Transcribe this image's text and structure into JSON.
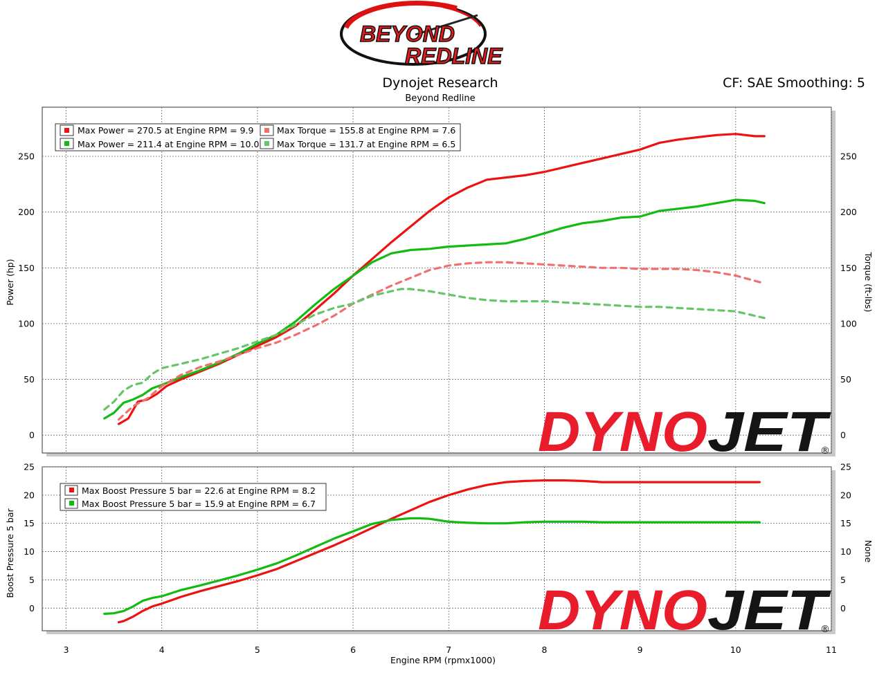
{
  "brand": {
    "logo_line1": "BEYOND",
    "logo_line2": "REDLINE"
  },
  "header": {
    "title": "Dynojet Research",
    "subtitle": "Beyond Redline",
    "cf_info": "CF: SAE Smoothing: 5"
  },
  "watermark": {
    "text_red": "DYNO",
    "text_black": "JET",
    "registered": "®"
  },
  "colors": {
    "run1": "#ee1111",
    "run1_light": "#f07070",
    "run2": "#11bb11",
    "run2_light": "#66c566",
    "grid": "#666666"
  },
  "chart_data": [
    {
      "type": "line",
      "xlabel": "Engine RPM (rpmx1000)",
      "ylabel": "Power (hp)",
      "y2label": "Torque (ft-lbs)",
      "xlim": [
        2.75,
        11
      ],
      "ylim": [
        -16,
        294
      ],
      "xticks": [
        3,
        4,
        5,
        6,
        7,
        8,
        9,
        10,
        11
      ],
      "yticks": [
        0,
        50,
        100,
        150,
        200,
        250
      ],
      "legend": [
        "Max Power = 270.5 at Engine RPM = 9.9",
        "Max Power = 211.4 at Engine RPM = 10.0",
        "Max Torque = 155.8 at Engine RPM = 7.6",
        "Max Torque = 131.7 at Engine RPM = 6.5"
      ],
      "legend_position": "top-left",
      "series": [
        {
          "kind": "power",
          "run": 1,
          "dashed": false,
          "x": [
            3.55,
            3.65,
            3.75,
            3.85,
            3.95,
            4.05,
            4.2,
            4.4,
            4.6,
            4.8,
            5.0,
            5.2,
            5.4,
            5.6,
            5.8,
            6.0,
            6.2,
            6.4,
            6.6,
            6.8,
            7.0,
            7.2,
            7.4,
            7.6,
            7.8,
            8.0,
            8.2,
            8.4,
            8.6,
            8.8,
            9.0,
            9.2,
            9.4,
            9.6,
            9.8,
            10.0,
            10.2,
            10.3
          ],
          "y": [
            10,
            15,
            30,
            32,
            37,
            44,
            50,
            57,
            64,
            72,
            80,
            88,
            98,
            112,
            127,
            143,
            158,
            173,
            187,
            201,
            213,
            222,
            229,
            231,
            233,
            236,
            240,
            244,
            248,
            252,
            256,
            262,
            265,
            267,
            269,
            270,
            268,
            268
          ]
        },
        {
          "kind": "power",
          "run": 2,
          "dashed": false,
          "x": [
            3.4,
            3.5,
            3.6,
            3.7,
            3.8,
            3.9,
            4.0,
            4.2,
            4.4,
            4.6,
            4.8,
            5.0,
            5.2,
            5.4,
            5.6,
            5.8,
            6.0,
            6.2,
            6.4,
            6.6,
            6.8,
            7.0,
            7.2,
            7.4,
            7.6,
            7.8,
            8.0,
            8.2,
            8.4,
            8.6,
            8.8,
            9.0,
            9.2,
            9.4,
            9.6,
            9.8,
            10.0,
            10.2,
            10.3
          ],
          "y": [
            15,
            20,
            29,
            32,
            36,
            42,
            45,
            52,
            58,
            65,
            73,
            82,
            90,
            102,
            117,
            131,
            143,
            155,
            163,
            166,
            167,
            169,
            170,
            171,
            172,
            176,
            181,
            186,
            190,
            192,
            195,
            196,
            201,
            203,
            205,
            208,
            211,
            210,
            208
          ]
        },
        {
          "kind": "torque",
          "run": 1,
          "dashed": true,
          "x": [
            3.55,
            3.7,
            3.85,
            4.0,
            4.2,
            4.4,
            4.6,
            4.8,
            5.0,
            5.2,
            5.4,
            5.6,
            5.8,
            6.0,
            6.2,
            6.4,
            6.6,
            6.8,
            7.0,
            7.2,
            7.4,
            7.6,
            7.8,
            8.0,
            8.2,
            8.4,
            8.6,
            8.8,
            9.0,
            9.2,
            9.4,
            9.6,
            9.8,
            10.0,
            10.3
          ],
          "y": [
            14,
            26,
            33,
            44,
            54,
            61,
            66,
            72,
            78,
            83,
            90,
            98,
            107,
            118,
            126,
            134,
            141,
            148,
            152,
            154,
            155,
            155,
            154,
            153,
            152,
            151,
            150,
            150,
            149,
            149,
            149,
            148,
            146,
            143,
            136
          ]
        },
        {
          "kind": "torque",
          "run": 2,
          "dashed": true,
          "x": [
            3.4,
            3.5,
            3.6,
            3.7,
            3.8,
            3.9,
            4.0,
            4.2,
            4.4,
            4.6,
            4.8,
            5.0,
            5.2,
            5.4,
            5.6,
            5.8,
            6.0,
            6.2,
            6.4,
            6.5,
            6.6,
            6.8,
            7.0,
            7.2,
            7.4,
            7.6,
            7.8,
            8.0,
            8.2,
            8.4,
            8.6,
            8.8,
            9.0,
            9.2,
            9.4,
            9.6,
            9.8,
            10.0,
            10.3
          ],
          "y": [
            23,
            30,
            40,
            45,
            47,
            55,
            60,
            64,
            68,
            73,
            78,
            84,
            90,
            99,
            108,
            114,
            118,
            125,
            129,
            131,
            131,
            129,
            126,
            123,
            121,
            120,
            120,
            120,
            119,
            118,
            117,
            116,
            115,
            115,
            114,
            113,
            112,
            111,
            105
          ]
        }
      ]
    },
    {
      "type": "line",
      "xlabel": "Engine RPM (rpmx1000)",
      "ylabel": "Boost Pressure 5 bar",
      "y2label": "None",
      "xlim": [
        2.75,
        11
      ],
      "ylim": [
        -4,
        25
      ],
      "xticks": [
        3,
        4,
        5,
        6,
        7,
        8,
        9,
        10,
        11
      ],
      "yticks": [
        0,
        5,
        10,
        15,
        20,
        25
      ],
      "legend": [
        "Max Boost Pressure 5 bar = 22.6 at Engine RPM = 8.2",
        "Max Boost Pressure 5 bar = 15.9 at Engine RPM = 6.7"
      ],
      "legend_position": "top-left",
      "series": [
        {
          "kind": "boost",
          "run": 1,
          "dashed": false,
          "x": [
            3.55,
            3.6,
            3.7,
            3.8,
            3.9,
            4.0,
            4.2,
            4.4,
            4.6,
            4.8,
            5.0,
            5.2,
            5.4,
            5.6,
            5.8,
            6.0,
            6.2,
            6.4,
            6.6,
            6.8,
            7.0,
            7.2,
            7.4,
            7.6,
            7.8,
            8.0,
            8.2,
            8.4,
            8.6,
            8.8,
            9.0,
            9.2,
            9.4,
            9.6,
            9.8,
            10.0,
            10.25
          ],
          "y": [
            -2.5,
            -2.3,
            -1.5,
            -0.5,
            0.3,
            0.8,
            2.0,
            3.0,
            3.9,
            4.8,
            5.8,
            6.9,
            8.3,
            9.7,
            11.1,
            12.6,
            14.2,
            15.8,
            17.3,
            18.8,
            20.0,
            21.0,
            21.8,
            22.3,
            22.5,
            22.6,
            22.6,
            22.5,
            22.3,
            22.3,
            22.3,
            22.3,
            22.3,
            22.3,
            22.3,
            22.3,
            22.3
          ]
        },
        {
          "kind": "boost",
          "run": 2,
          "dashed": false,
          "x": [
            3.4,
            3.5,
            3.6,
            3.7,
            3.8,
            3.9,
            4.0,
            4.2,
            4.4,
            4.6,
            4.8,
            5.0,
            5.2,
            5.4,
            5.6,
            5.8,
            6.0,
            6.2,
            6.4,
            6.6,
            6.7,
            6.8,
            7.0,
            7.2,
            7.4,
            7.6,
            7.8,
            8.0,
            8.2,
            8.4,
            8.6,
            8.8,
            9.0,
            9.2,
            9.4,
            9.6,
            9.8,
            10.0,
            10.25
          ],
          "y": [
            -1.0,
            -0.9,
            -0.5,
            0.3,
            1.3,
            1.8,
            2.1,
            3.2,
            4.0,
            4.9,
            5.8,
            6.8,
            7.9,
            9.3,
            10.8,
            12.3,
            13.6,
            14.9,
            15.6,
            15.9,
            15.9,
            15.8,
            15.3,
            15.1,
            15.0,
            15.0,
            15.2,
            15.3,
            15.3,
            15.3,
            15.2,
            15.2,
            15.2,
            15.2,
            15.2,
            15.2,
            15.2,
            15.2,
            15.2
          ]
        }
      ]
    }
  ]
}
